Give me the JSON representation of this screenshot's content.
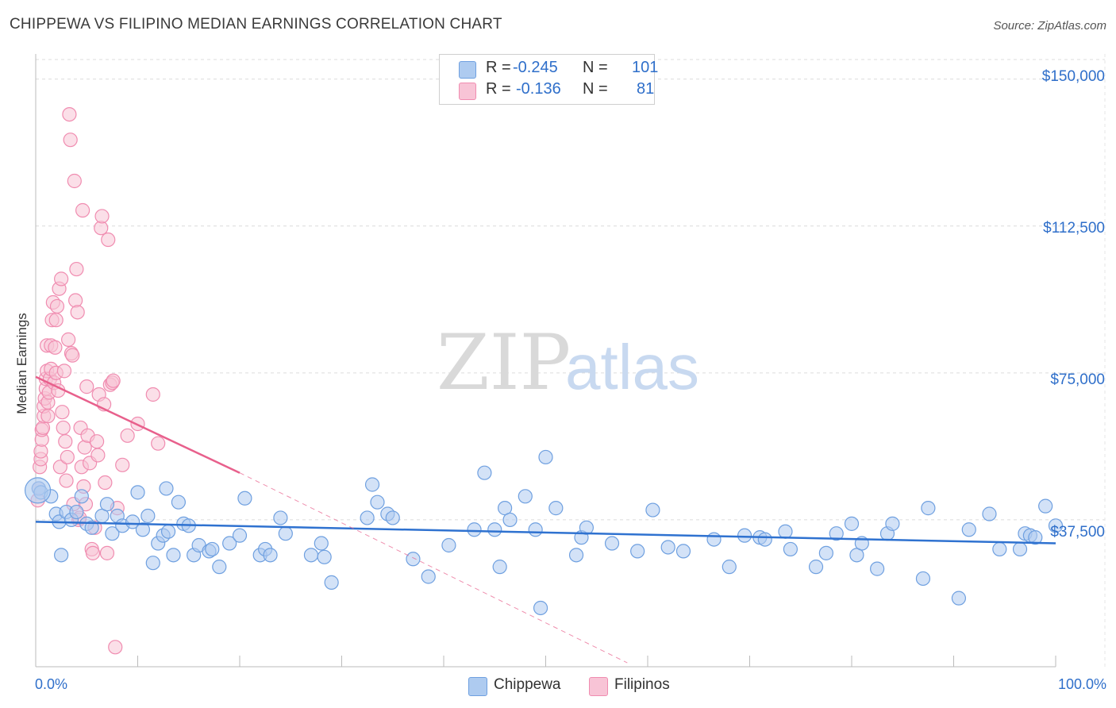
{
  "chart_data": {
    "type": "scatter",
    "title": "CHIPPEWA VS FILIPINO MEDIAN EARNINGS CORRELATION CHART",
    "source": "Source: ZipAtlas.com",
    "ylabel": "Median Earnings",
    "xlabel": "",
    "xlim": [
      0,
      100
    ],
    "ylim": [
      0,
      155000
    ],
    "x_tick_labels": [
      "0.0%",
      "100.0%"
    ],
    "y_ticks": [
      {
        "value": 150000,
        "label": "$150,000"
      },
      {
        "value": 112500,
        "label": "$112,500"
      },
      {
        "value": 75000,
        "label": "$75,000"
      },
      {
        "value": 37500,
        "label": "$37,500"
      }
    ],
    "watermark": {
      "zip": "ZIP",
      "atlas": "atlas"
    },
    "legend": {
      "rows": [
        {
          "r_label": "R =",
          "r_value": "-0.245",
          "n_label": "N =",
          "n_value": "101"
        },
        {
          "r_label": "R =",
          "r_value": "-0.136",
          "n_label": "N =",
          "n_value": "81"
        }
      ]
    },
    "series": [
      {
        "name": "Chippewa",
        "color": "#6fa0e0",
        "fill": "#aecbf0",
        "line_color": "#2f72d0",
        "trend": {
          "x0": 0,
          "y0": 37000,
          "x1": 100,
          "y1": 31500
        },
        "points": [
          [
            0.3,
            45500
          ],
          [
            0.5,
            44500
          ],
          [
            1.5,
            43500
          ],
          [
            2.0,
            39000
          ],
          [
            2.3,
            37000
          ],
          [
            2.5,
            28500
          ],
          [
            3.0,
            39500
          ],
          [
            3.5,
            37500
          ],
          [
            4.0,
            39500
          ],
          [
            4.5,
            43500
          ],
          [
            5.0,
            36500
          ],
          [
            5.5,
            35500
          ],
          [
            6.5,
            38500
          ],
          [
            7.0,
            41500
          ],
          [
            7.5,
            34000
          ],
          [
            8.0,
            38500
          ],
          [
            8.5,
            36000
          ],
          [
            9.5,
            37000
          ],
          [
            10.0,
            44500
          ],
          [
            10.5,
            35000
          ],
          [
            11.0,
            38500
          ],
          [
            11.5,
            26500
          ],
          [
            12.0,
            31500
          ],
          [
            12.5,
            33500
          ],
          [
            12.8,
            45500
          ],
          [
            13.0,
            34500
          ],
          [
            13.5,
            28500
          ],
          [
            14.0,
            42000
          ],
          [
            14.5,
            36500
          ],
          [
            15.0,
            36000
          ],
          [
            15.5,
            28500
          ],
          [
            16.0,
            31000
          ],
          [
            17.0,
            29500
          ],
          [
            17.3,
            30000
          ],
          [
            18.0,
            25500
          ],
          [
            19.0,
            31500
          ],
          [
            20.0,
            33500
          ],
          [
            20.5,
            43000
          ],
          [
            22.0,
            28500
          ],
          [
            22.5,
            30000
          ],
          [
            23.0,
            28500
          ],
          [
            24.0,
            38000
          ],
          [
            24.5,
            34000
          ],
          [
            27.0,
            28500
          ],
          [
            28.0,
            31500
          ],
          [
            28.3,
            28000
          ],
          [
            29.0,
            21500
          ],
          [
            32.5,
            38000
          ],
          [
            33.0,
            46500
          ],
          [
            33.5,
            42000
          ],
          [
            34.5,
            39000
          ],
          [
            35.0,
            38000
          ],
          [
            37.0,
            27500
          ],
          [
            38.5,
            23000
          ],
          [
            40.5,
            31000
          ],
          [
            43.0,
            35000
          ],
          [
            44.0,
            49500
          ],
          [
            45.0,
            35000
          ],
          [
            45.5,
            25500
          ],
          [
            46.0,
            40500
          ],
          [
            46.5,
            37500
          ],
          [
            48.0,
            43500
          ],
          [
            49.0,
            35000
          ],
          [
            49.5,
            15000
          ],
          [
            50.0,
            53500
          ],
          [
            51.0,
            40500
          ],
          [
            53.0,
            28500
          ],
          [
            53.5,
            33000
          ],
          [
            54.0,
            35500
          ],
          [
            56.5,
            31500
          ],
          [
            59.0,
            29500
          ],
          [
            60.5,
            40000
          ],
          [
            62.0,
            30500
          ],
          [
            63.5,
            29500
          ],
          [
            66.5,
            32500
          ],
          [
            68.0,
            25500
          ],
          [
            69.5,
            33500
          ],
          [
            71.0,
            33000
          ],
          [
            71.5,
            32500
          ],
          [
            73.5,
            34500
          ],
          [
            74.0,
            30000
          ],
          [
            76.5,
            25500
          ],
          [
            77.5,
            29000
          ],
          [
            78.5,
            34000
          ],
          [
            80.0,
            36500
          ],
          [
            80.5,
            28500
          ],
          [
            81.0,
            31500
          ],
          [
            82.5,
            25000
          ],
          [
            83.5,
            34000
          ],
          [
            84.0,
            36500
          ],
          [
            87.0,
            22500
          ],
          [
            87.5,
            40500
          ],
          [
            90.5,
            17500
          ],
          [
            91.5,
            35000
          ],
          [
            93.5,
            39000
          ],
          [
            94.5,
            30000
          ],
          [
            96.5,
            30000
          ],
          [
            97.0,
            34000
          ],
          [
            97.5,
            33500
          ],
          [
            98.0,
            33000
          ],
          [
            99.0,
            41000
          ],
          [
            100.0,
            36000
          ]
        ]
      },
      {
        "name": "Filipinos",
        "color": "#f08cb0",
        "fill": "#f8c4d6",
        "line_color": "#e8608c",
        "trend": {
          "x0": 0,
          "y0": 74000,
          "x1": 20,
          "y1": 49500
        },
        "trend_extension": {
          "x0": 20,
          "y0": 49500,
          "x1": 58,
          "y1": 1000
        },
        "points": [
          [
            0.2,
            42500
          ],
          [
            0.3,
            45500
          ],
          [
            0.4,
            51000
          ],
          [
            0.5,
            53000
          ],
          [
            0.5,
            55000
          ],
          [
            0.6,
            58000
          ],
          [
            0.6,
            60500
          ],
          [
            0.7,
            61000
          ],
          [
            0.8,
            64000
          ],
          [
            0.8,
            66500
          ],
          [
            0.9,
            68500
          ],
          [
            1.0,
            71000
          ],
          [
            1.0,
            73500
          ],
          [
            1.1,
            75500
          ],
          [
            1.1,
            82000
          ],
          [
            1.2,
            64000
          ],
          [
            1.2,
            67500
          ],
          [
            1.3,
            70000
          ],
          [
            1.4,
            73500
          ],
          [
            1.5,
            76000
          ],
          [
            1.5,
            82000
          ],
          [
            1.6,
            88500
          ],
          [
            1.7,
            93000
          ],
          [
            1.8,
            72500
          ],
          [
            1.9,
            81500
          ],
          [
            2.0,
            75000
          ],
          [
            2.0,
            88500
          ],
          [
            2.1,
            92000
          ],
          [
            2.2,
            70500
          ],
          [
            2.3,
            96500
          ],
          [
            2.4,
            51000
          ],
          [
            2.5,
            99000
          ],
          [
            2.6,
            65000
          ],
          [
            2.7,
            61000
          ],
          [
            2.8,
            75500
          ],
          [
            2.9,
            57500
          ],
          [
            3.0,
            47500
          ],
          [
            3.1,
            53500
          ],
          [
            3.2,
            83500
          ],
          [
            3.3,
            141000
          ],
          [
            3.4,
            134500
          ],
          [
            3.5,
            80000
          ],
          [
            3.6,
            79500
          ],
          [
            3.7,
            41500
          ],
          [
            3.8,
            124000
          ],
          [
            3.9,
            93500
          ],
          [
            4.0,
            101500
          ],
          [
            4.1,
            90500
          ],
          [
            4.2,
            37500
          ],
          [
            4.3,
            38000
          ],
          [
            4.4,
            61000
          ],
          [
            4.5,
            51000
          ],
          [
            4.6,
            116500
          ],
          [
            4.7,
            46000
          ],
          [
            4.8,
            56000
          ],
          [
            4.9,
            41500
          ],
          [
            5.0,
            71500
          ],
          [
            5.1,
            59000
          ],
          [
            5.3,
            52000
          ],
          [
            5.5,
            30000
          ],
          [
            5.6,
            29000
          ],
          [
            5.8,
            35500
          ],
          [
            6.0,
            57500
          ],
          [
            6.1,
            54000
          ],
          [
            6.2,
            69500
          ],
          [
            6.4,
            112000
          ],
          [
            6.5,
            115000
          ],
          [
            6.7,
            67000
          ],
          [
            6.8,
            47000
          ],
          [
            7.0,
            29000
          ],
          [
            7.1,
            109000
          ],
          [
            7.3,
            72000
          ],
          [
            7.5,
            72500
          ],
          [
            7.6,
            73000
          ],
          [
            7.8,
            5000
          ],
          [
            8.0,
            40500
          ],
          [
            8.5,
            51500
          ],
          [
            9.0,
            59000
          ],
          [
            10.0,
            62000
          ],
          [
            11.5,
            69500
          ],
          [
            12.0,
            57000
          ]
        ]
      }
    ]
  }
}
